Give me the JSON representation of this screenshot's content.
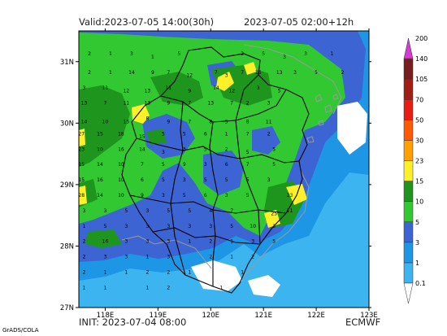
{
  "header": {
    "valid": "Valid:2023-07-05 14:00(30h)",
    "period": "2023-07-05 02:00+12h"
  },
  "footer": {
    "init": "INIT: 2023-07-04 08:00",
    "model": "ECMWF",
    "credit": "GrADS/COLA"
  },
  "axes": {
    "lon": {
      "range": [
        117.5,
        123.0
      ],
      "ticks": [
        "118E",
        "119E",
        "120E",
        "121E",
        "122E",
        "123E"
      ],
      "values": [
        118,
        119,
        120,
        121,
        122,
        123
      ]
    },
    "lat": {
      "range": [
        27.0,
        31.5
      ],
      "ticks": [
        "27N",
        "28N",
        "29N",
        "30N",
        "31N"
      ],
      "values": [
        27,
        28,
        29,
        30,
        31
      ]
    }
  },
  "legend": {
    "levels": [
      "0.1",
      "1",
      "3",
      "5",
      "10",
      "15",
      "23",
      "30",
      "50",
      "70",
      "105",
      "140",
      "200"
    ],
    "colors": [
      "#3cb4f0",
      "#1e96e6",
      "#3c64d2",
      "#32c832",
      "#1e961e",
      "#fff028",
      "#ffa000",
      "#ff5a00",
      "#e61e14",
      "#a01e14",
      "#781e1e",
      "#d23cd2"
    ]
  },
  "colors": {
    "land_outline": "#000000",
    "coast": "#9a9a9a",
    "no_rain": "#ffffff"
  },
  "values": [
    {
      "v": "2",
      "lon": 117.7,
      "lat": 31.1
    },
    {
      "v": "1",
      "lon": 118.1,
      "lat": 31.1
    },
    {
      "v": "3",
      "lon": 118.5,
      "lat": 31.1
    },
    {
      "v": "1",
      "lon": 118.9,
      "lat": 31.05
    },
    {
      "v": "5",
      "lon": 119.4,
      "lat": 31.1
    },
    {
      "v": "2",
      "lon": 120.6,
      "lat": 31.1
    },
    {
      "v": "5",
      "lon": 121.0,
      "lat": 31.1
    },
    {
      "v": "3",
      "lon": 121.4,
      "lat": 31.05
    },
    {
      "v": "3",
      "lon": 121.8,
      "lat": 31.1
    },
    {
      "v": "1",
      "lon": 122.3,
      "lat": 31.1
    },
    {
      "v": "2",
      "lon": 117.7,
      "lat": 30.8
    },
    {
      "v": "1",
      "lon": 118.1,
      "lat": 30.8
    },
    {
      "v": "14",
      "lon": 118.5,
      "lat": 30.8
    },
    {
      "v": "9",
      "lon": 118.9,
      "lat": 30.8
    },
    {
      "v": "7",
      "lon": 119.2,
      "lat": 30.8
    },
    {
      "v": "12",
      "lon": 119.6,
      "lat": 30.75
    },
    {
      "v": "7",
      "lon": 120.1,
      "lat": 30.8
    },
    {
      "v": "3",
      "lon": 120.3,
      "lat": 30.75
    },
    {
      "v": "7",
      "lon": 120.6,
      "lat": 30.8
    },
    {
      "v": "16",
      "lon": 120.9,
      "lat": 30.8
    },
    {
      "v": "13",
      "lon": 121.3,
      "lat": 30.8
    },
    {
      "v": "3",
      "lon": 121.6,
      "lat": 30.8
    },
    {
      "v": "5",
      "lon": 122.0,
      "lat": 30.8
    },
    {
      "v": "2",
      "lon": 122.5,
      "lat": 30.8
    },
    {
      "v": "3",
      "lon": 117.6,
      "lat": 30.55
    },
    {
      "v": "11",
      "lon": 118.0,
      "lat": 30.55
    },
    {
      "v": "12",
      "lon": 118.4,
      "lat": 30.5
    },
    {
      "v": "13",
      "lon": 118.8,
      "lat": 30.5
    },
    {
      "v": "11",
      "lon": 119.2,
      "lat": 30.55
    },
    {
      "v": "9",
      "lon": 119.6,
      "lat": 30.5
    },
    {
      "v": "14",
      "lon": 120.1,
      "lat": 30.55
    },
    {
      "v": "12",
      "lon": 120.4,
      "lat": 30.5
    },
    {
      "v": "3",
      "lon": 120.9,
      "lat": 30.55
    },
    {
      "v": "5",
      "lon": 121.3,
      "lat": 30.5
    },
    {
      "v": "13",
      "lon": 117.6,
      "lat": 30.3
    },
    {
      "v": "7",
      "lon": 118.0,
      "lat": 30.3
    },
    {
      "v": "11",
      "lon": 118.4,
      "lat": 30.3
    },
    {
      "v": "13",
      "lon": 118.8,
      "lat": 30.3
    },
    {
      "v": "9",
      "lon": 119.2,
      "lat": 30.3
    },
    {
      "v": "7",
      "lon": 119.6,
      "lat": 30.3
    },
    {
      "v": "13",
      "lon": 120.0,
      "lat": 30.3
    },
    {
      "v": "7",
      "lon": 120.4,
      "lat": 30.3
    },
    {
      "v": "2",
      "lon": 120.7,
      "lat": 30.3
    },
    {
      "v": "3",
      "lon": 121.1,
      "lat": 30.3
    },
    {
      "v": "14",
      "lon": 117.6,
      "lat": 30.0
    },
    {
      "v": "10",
      "lon": 118.0,
      "lat": 30.0
    },
    {
      "v": "15",
      "lon": 118.4,
      "lat": 30.0
    },
    {
      "v": "8",
      "lon": 118.8,
      "lat": 30.05
    },
    {
      "v": "9",
      "lon": 119.2,
      "lat": 30.0
    },
    {
      "v": "7",
      "lon": 119.6,
      "lat": 30.0
    },
    {
      "v": "8",
      "lon": 120.0,
      "lat": 30.0
    },
    {
      "v": "5",
      "lon": 120.3,
      "lat": 30.0
    },
    {
      "v": "8",
      "lon": 120.7,
      "lat": 30.0
    },
    {
      "v": "11",
      "lon": 121.1,
      "lat": 30.0
    },
    {
      "v": "27",
      "lon": 117.55,
      "lat": 29.8
    },
    {
      "v": "15",
      "lon": 117.9,
      "lat": 29.8
    },
    {
      "v": "18",
      "lon": 118.3,
      "lat": 29.8
    },
    {
      "v": "15",
      "lon": 118.7,
      "lat": 29.75
    },
    {
      "v": "5",
      "lon": 119.1,
      "lat": 29.8
    },
    {
      "v": "5",
      "lon": 119.5,
      "lat": 29.8
    },
    {
      "v": "6",
      "lon": 119.9,
      "lat": 29.8
    },
    {
      "v": "1",
      "lon": 120.3,
      "lat": 29.8
    },
    {
      "v": "7",
      "lon": 120.7,
      "lat": 29.8
    },
    {
      "v": "2",
      "lon": 121.1,
      "lat": 29.8
    },
    {
      "v": "23",
      "lon": 117.55,
      "lat": 29.55
    },
    {
      "v": "10",
      "lon": 117.9,
      "lat": 29.55
    },
    {
      "v": "16",
      "lon": 118.3,
      "lat": 29.55
    },
    {
      "v": "14",
      "lon": 118.7,
      "lat": 29.55
    },
    {
      "v": "3",
      "lon": 119.1,
      "lat": 29.5
    },
    {
      "v": "3",
      "lon": 119.5,
      "lat": 29.55
    },
    {
      "v": "5",
      "lon": 119.9,
      "lat": 29.55
    },
    {
      "v": "2",
      "lon": 120.3,
      "lat": 29.55
    },
    {
      "v": "5",
      "lon": 120.7,
      "lat": 29.5
    },
    {
      "v": "5",
      "lon": 121.2,
      "lat": 29.55
    },
    {
      "v": "15",
      "lon": 117.55,
      "lat": 29.3
    },
    {
      "v": "14",
      "lon": 117.9,
      "lat": 29.3
    },
    {
      "v": "10",
      "lon": 118.3,
      "lat": 29.3
    },
    {
      "v": "7",
      "lon": 118.7,
      "lat": 29.3
    },
    {
      "v": "5",
      "lon": 119.1,
      "lat": 29.3
    },
    {
      "v": "9",
      "lon": 119.5,
      "lat": 29.3
    },
    {
      "v": "3",
      "lon": 119.9,
      "lat": 29.3
    },
    {
      "v": "6",
      "lon": 120.3,
      "lat": 29.3
    },
    {
      "v": "7",
      "lon": 120.7,
      "lat": 29.3
    },
    {
      "v": "5",
      "lon": 121.2,
      "lat": 29.3
    },
    {
      "v": "15",
      "lon": 117.55,
      "lat": 29.05
    },
    {
      "v": "16",
      "lon": 117.9,
      "lat": 29.05
    },
    {
      "v": "10",
      "lon": 118.3,
      "lat": 29.05
    },
    {
      "v": "6",
      "lon": 118.7,
      "lat": 29.05
    },
    {
      "v": "5",
      "lon": 119.1,
      "lat": 29.05
    },
    {
      "v": "3",
      "lon": 119.5,
      "lat": 29.05
    },
    {
      "v": "5",
      "lon": 119.9,
      "lat": 29.05
    },
    {
      "v": "5",
      "lon": 120.3,
      "lat": 29.05
    },
    {
      "v": "5",
      "lon": 120.7,
      "lat": 29.05
    },
    {
      "v": "3",
      "lon": 121.1,
      "lat": 29.05
    },
    {
      "v": "28",
      "lon": 117.55,
      "lat": 28.8
    },
    {
      "v": "14",
      "lon": 117.9,
      "lat": 28.8
    },
    {
      "v": "10",
      "lon": 118.3,
      "lat": 28.8
    },
    {
      "v": "9",
      "lon": 118.7,
      "lat": 28.8
    },
    {
      "v": "3",
      "lon": 119.1,
      "lat": 28.8
    },
    {
      "v": "5",
      "lon": 119.5,
      "lat": 28.8
    },
    {
      "v": "6",
      "lon": 119.9,
      "lat": 28.8
    },
    {
      "v": "3",
      "lon": 120.3,
      "lat": 28.8
    },
    {
      "v": "5",
      "lon": 120.7,
      "lat": 28.8
    },
    {
      "v": "23",
      "lon": 121.5,
      "lat": 28.8
    },
    {
      "v": "3",
      "lon": 117.6,
      "lat": 28.55
    },
    {
      "v": "3",
      "lon": 118.0,
      "lat": 28.55
    },
    {
      "v": "5",
      "lon": 118.4,
      "lat": 28.55
    },
    {
      "v": "3",
      "lon": 118.8,
      "lat": 28.55
    },
    {
      "v": "5",
      "lon": 119.2,
      "lat": 28.55
    },
    {
      "v": "5",
      "lon": 119.6,
      "lat": 28.55
    },
    {
      "v": "4",
      "lon": 120.0,
      "lat": 28.55
    },
    {
      "v": "7",
      "lon": 120.4,
      "lat": 28.55
    },
    {
      "v": "25",
      "lon": 121.2,
      "lat": 28.5
    },
    {
      "v": "11",
      "lon": 121.5,
      "lat": 28.55
    },
    {
      "v": "1",
      "lon": 117.6,
      "lat": 28.3
    },
    {
      "v": "5",
      "lon": 118.0,
      "lat": 28.3
    },
    {
      "v": "3",
      "lon": 118.4,
      "lat": 28.3
    },
    {
      "v": "3",
      "lon": 118.8,
      "lat": 28.3
    },
    {
      "v": "3",
      "lon": 119.2,
      "lat": 28.3
    },
    {
      "v": "3",
      "lon": 119.6,
      "lat": 28.3
    },
    {
      "v": "3",
      "lon": 120.0,
      "lat": 28.3
    },
    {
      "v": "5",
      "lon": 120.4,
      "lat": 28.3
    },
    {
      "v": "10",
      "lon": 120.8,
      "lat": 28.3
    },
    {
      "v": "3",
      "lon": 121.2,
      "lat": 28.3
    },
    {
      "v": "2",
      "lon": 117.6,
      "lat": 28.05
    },
    {
      "v": "16",
      "lon": 118.0,
      "lat": 28.05
    },
    {
      "v": "3",
      "lon": 118.4,
      "lat": 28.05
    },
    {
      "v": "3",
      "lon": 118.8,
      "lat": 28.05
    },
    {
      "v": "3",
      "lon": 119.2,
      "lat": 28.05
    },
    {
      "v": "1",
      "lon": 119.6,
      "lat": 28.05
    },
    {
      "v": "2",
      "lon": 120.0,
      "lat": 28.05
    },
    {
      "v": "1",
      "lon": 120.4,
      "lat": 28.05
    },
    {
      "v": "3",
      "lon": 120.8,
      "lat": 28.05
    },
    {
      "v": "5",
      "lon": 121.2,
      "lat": 28.05
    },
    {
      "v": "2",
      "lon": 117.6,
      "lat": 27.8
    },
    {
      "v": "3",
      "lon": 118.0,
      "lat": 27.8
    },
    {
      "v": "3",
      "lon": 118.4,
      "lat": 27.8
    },
    {
      "v": "1",
      "lon": 118.8,
      "lat": 27.8
    },
    {
      "v": "3",
      "lon": 119.2,
      "lat": 27.8
    },
    {
      "v": "2",
      "lon": 120.0,
      "lat": 27.8
    },
    {
      "v": "1",
      "lon": 120.4,
      "lat": 27.8
    },
    {
      "v": "2",
      "lon": 120.8,
      "lat": 27.8
    },
    {
      "v": "2",
      "lon": 117.6,
      "lat": 27.55
    },
    {
      "v": "1",
      "lon": 118.0,
      "lat": 27.55
    },
    {
      "v": "1",
      "lon": 118.4,
      "lat": 27.55
    },
    {
      "v": "2",
      "lon": 118.8,
      "lat": 27.55
    },
    {
      "v": "2",
      "lon": 119.2,
      "lat": 27.55
    },
    {
      "v": "1",
      "lon": 119.6,
      "lat": 27.55
    },
    {
      "v": "1",
      "lon": 120.6,
      "lat": 27.55
    },
    {
      "v": "1",
      "lon": 117.6,
      "lat": 27.3
    },
    {
      "v": "1",
      "lon": 118.0,
      "lat": 27.3
    },
    {
      "v": "1",
      "lon": 118.8,
      "lat": 27.3
    },
    {
      "v": "2",
      "lon": 119.2,
      "lat": 27.3
    },
    {
      "v": "1",
      "lon": 120.2,
      "lat": 27.3
    }
  ]
}
